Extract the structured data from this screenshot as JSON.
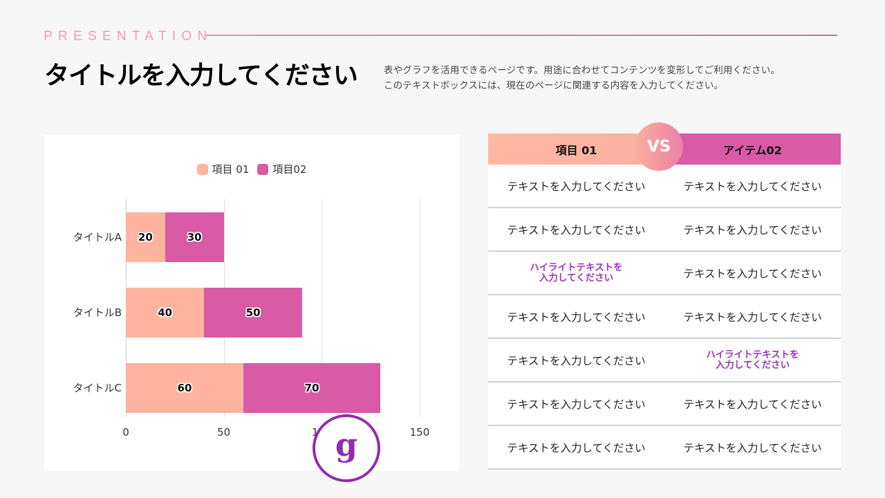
{
  "header": {
    "kicker": "PRESENTATION",
    "title": "タイトルを入力してください",
    "description_lines": [
      "表やグラフを活用できるページです。用途に合わせてコンテンツを変形してご利用ください。",
      "このテキストボックスには、現在のページに関連する内容を入力してください。"
    ]
  },
  "colors": {
    "series1": "#ffb4a0",
    "series2": "#d95aa5",
    "accent_purple": "#8e2eb0",
    "kicker_pink": "#f29bb8"
  },
  "chart_data": {
    "type": "bar",
    "orientation": "horizontal",
    "stacked": true,
    "title": "",
    "xlabel": "",
    "ylabel": "",
    "categories": [
      "タイトルA",
      "タイトルB",
      "タイトルC"
    ],
    "series": [
      {
        "name": "項目 01",
        "values": [
          20,
          40,
          60
        ],
        "color": "#ffb4a0"
      },
      {
        "name": "項目02",
        "values": [
          30,
          50,
          70
        ],
        "color": "#d95aa5"
      }
    ],
    "xlim": [
      0,
      150
    ],
    "x_ticks": [
      "0",
      "50",
      "100",
      "150"
    ],
    "grid": true,
    "legend_position": "top",
    "data_labels": true
  },
  "badge": {
    "glyph": "g"
  },
  "table": {
    "header": {
      "left": "項目 01",
      "vs": "VS",
      "right": "アイテム02"
    },
    "rows": [
      {
        "left": "テキストを入力してください",
        "right": "テキストを入力してください",
        "left_hl": false,
        "right_hl": false
      },
      {
        "left": "テキストを入力してください",
        "right": "テキストを入力してください",
        "left_hl": false,
        "right_hl": false
      },
      {
        "left": "ハイライトテキストを\n入力してください",
        "right": "テキストを入力してください",
        "left_hl": true,
        "right_hl": false
      },
      {
        "left": "テキストを入力してください",
        "right": "テキストを入力してください",
        "left_hl": false,
        "right_hl": false
      },
      {
        "left": "テキストを入力してください",
        "right": "ハイライトテキストを\n入力してください",
        "left_hl": false,
        "right_hl": true
      },
      {
        "left": "テキストを入力してください",
        "right": "テキストを入力してください",
        "left_hl": false,
        "right_hl": false
      },
      {
        "left": "テキストを入力してください",
        "right": "テキストを入力してください",
        "left_hl": false,
        "right_hl": false
      }
    ]
  }
}
